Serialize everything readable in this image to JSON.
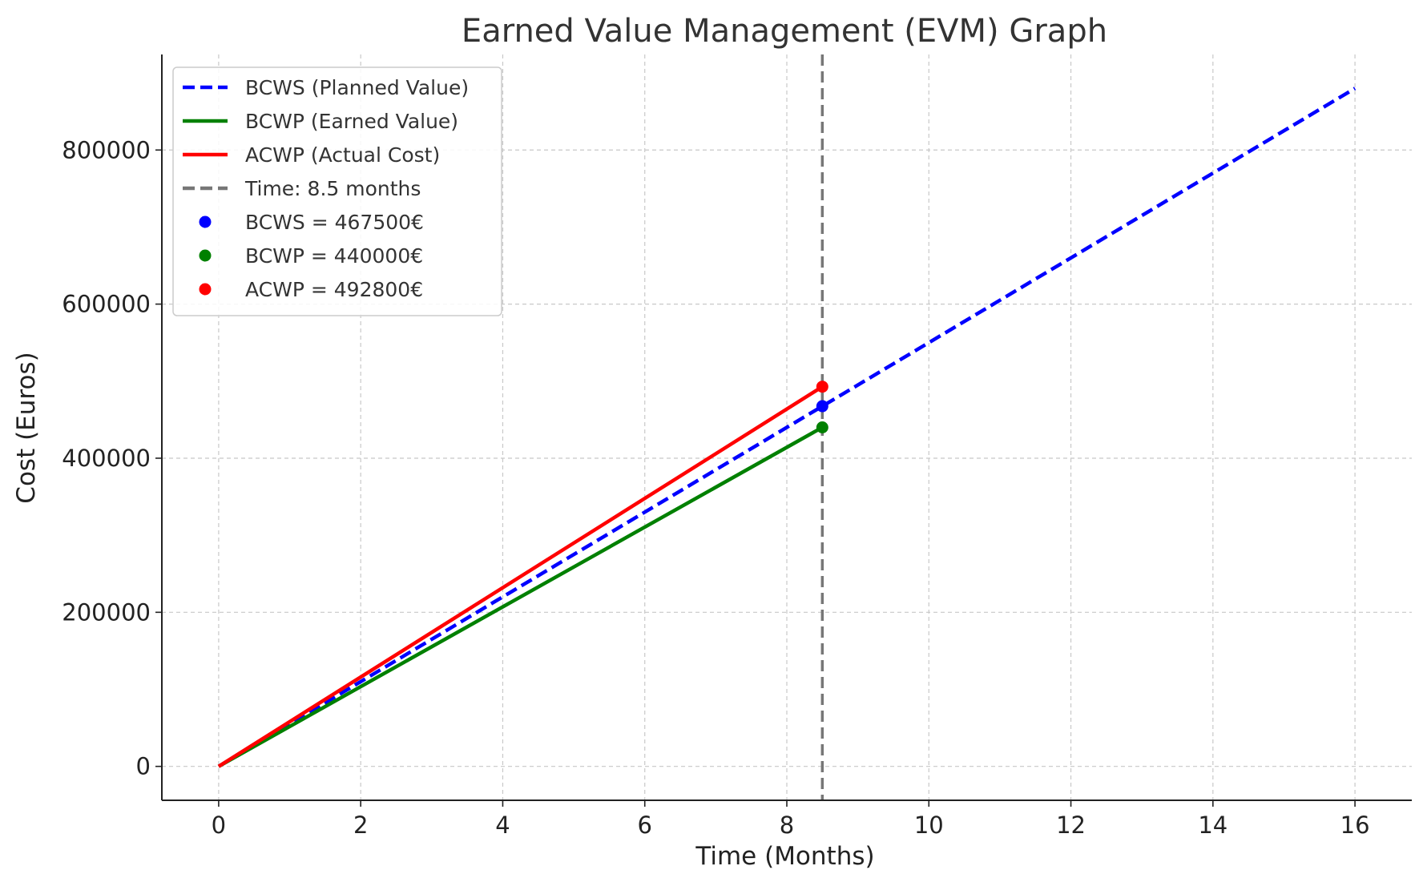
{
  "chart_data": {
    "type": "line",
    "title": "Earned Value Management (EVM) Graph",
    "xlabel": "Time (Months)",
    "ylabel": "Cost (Euros)",
    "xlim": [
      -0.8,
      16.8
    ],
    "ylim": [
      -44000,
      924000
    ],
    "xticks": [
      0,
      2,
      4,
      6,
      8,
      10,
      12,
      14,
      16
    ],
    "yticks": [
      0,
      200000,
      400000,
      600000,
      800000
    ],
    "grid": true,
    "legend_position": "top-left",
    "series": [
      {
        "name": "BCWS (Planned Value)",
        "color": "#0000ff",
        "style": "dashed",
        "x": [
          0,
          16
        ],
        "y": [
          0,
          880000
        ]
      },
      {
        "name": "BCWP (Earned Value)",
        "color": "#008000",
        "style": "solid",
        "x": [
          0,
          8.5
        ],
        "y": [
          0,
          440000
        ]
      },
      {
        "name": "ACWP (Actual Cost)",
        "color": "#ff0000",
        "style": "solid",
        "x": [
          0,
          8.5
        ],
        "y": [
          0,
          492800
        ]
      }
    ],
    "vline": {
      "name": "Time: 8.5 months",
      "x": 8.5,
      "color": "#777777",
      "style": "dashed"
    },
    "points": [
      {
        "name": "BCWS = 467500€",
        "x": 8.5,
        "y": 467500,
        "color": "#0000ff"
      },
      {
        "name": "BCWP = 440000€",
        "x": 8.5,
        "y": 440000,
        "color": "#008000"
      },
      {
        "name": "ACWP = 492800€",
        "x": 8.5,
        "y": 492800,
        "color": "#ff0000"
      }
    ]
  }
}
